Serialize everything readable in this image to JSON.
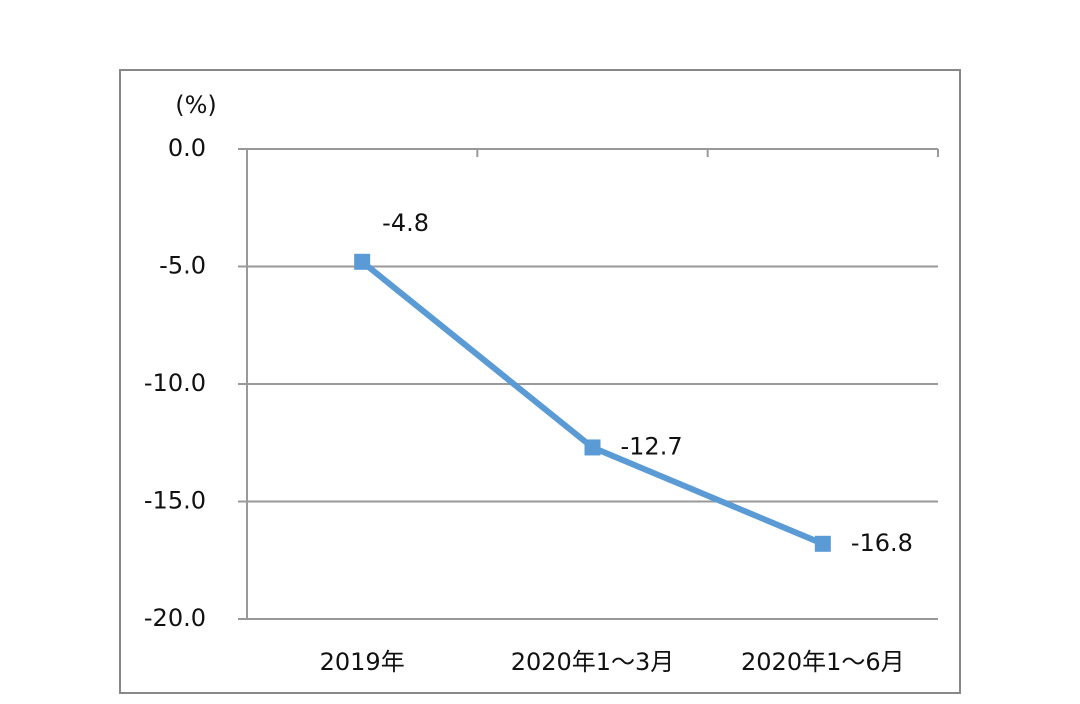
{
  "chart_data": {
    "type": "line",
    "y_axis_label": "(%)",
    "categories": [
      "2019年",
      "2020年1～3月",
      "2020年1～6月"
    ],
    "series": [
      {
        "name": "",
        "color": "#5b9bd5",
        "values": [
          -4.8,
          -12.7,
          -16.8
        ]
      }
    ],
    "ylim": [
      -20,
      0
    ],
    "yticks": [
      {
        "value": 0,
        "label": "0.0"
      },
      {
        "value": -5,
        "label": "-5.0"
      },
      {
        "value": -10,
        "label": "-10.0"
      },
      {
        "value": -15,
        "label": "-15.0"
      },
      {
        "value": -20,
        "label": "-20.0"
      }
    ],
    "grid": true
  }
}
